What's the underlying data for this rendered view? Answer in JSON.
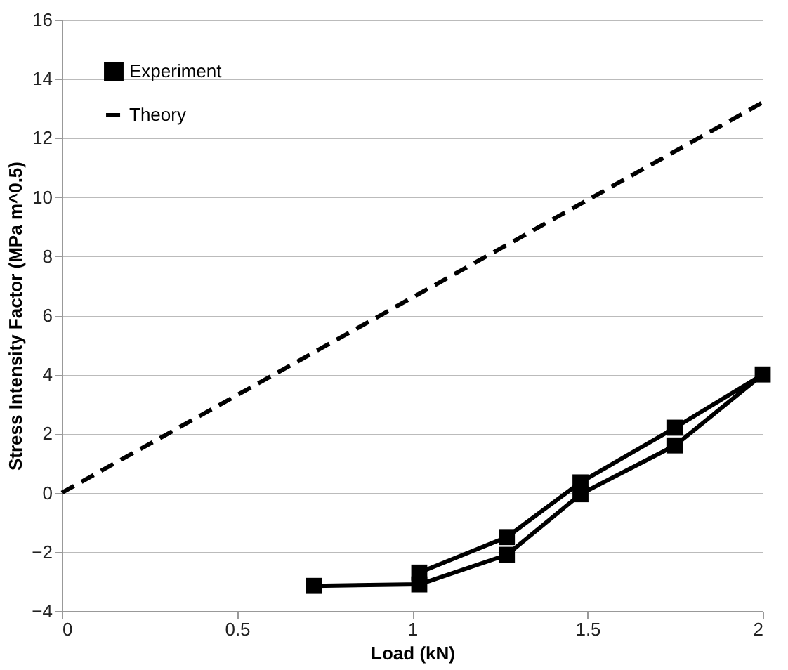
{
  "chart_data": {
    "type": "line",
    "xlabel": "Load (kN)",
    "ylabel": "Stress Intensity Factor (MPa m^0.5)",
    "xlim": [
      0,
      2
    ],
    "xticks": [
      0,
      0.5,
      1,
      1.5,
      2
    ],
    "ylim": [
      -4,
      16
    ],
    "yticks": [
      -4,
      -2,
      0,
      2,
      4,
      6,
      8,
      10,
      12,
      14,
      16
    ],
    "grid": "y",
    "legend": "top left",
    "series": [
      {
        "name": "Experiment",
        "color": "#000000",
        "marker": "square",
        "line_style": "solid",
        "x": [
          0.72,
          1.02,
          1.27,
          1.48,
          1.75,
          2.0,
          1.75,
          1.48,
          1.27,
          1.02
        ],
        "values": [
          -3.15,
          -3.1,
          -2.1,
          -0.05,
          1.6,
          4.0,
          2.2,
          0.35,
          -1.5,
          -2.7
        ]
      },
      {
        "name": "Theory",
        "color": "#000000",
        "marker": "none",
        "line_style": "dashed",
        "x": [
          0,
          2
        ],
        "values": [
          0,
          13.2
        ]
      }
    ]
  }
}
